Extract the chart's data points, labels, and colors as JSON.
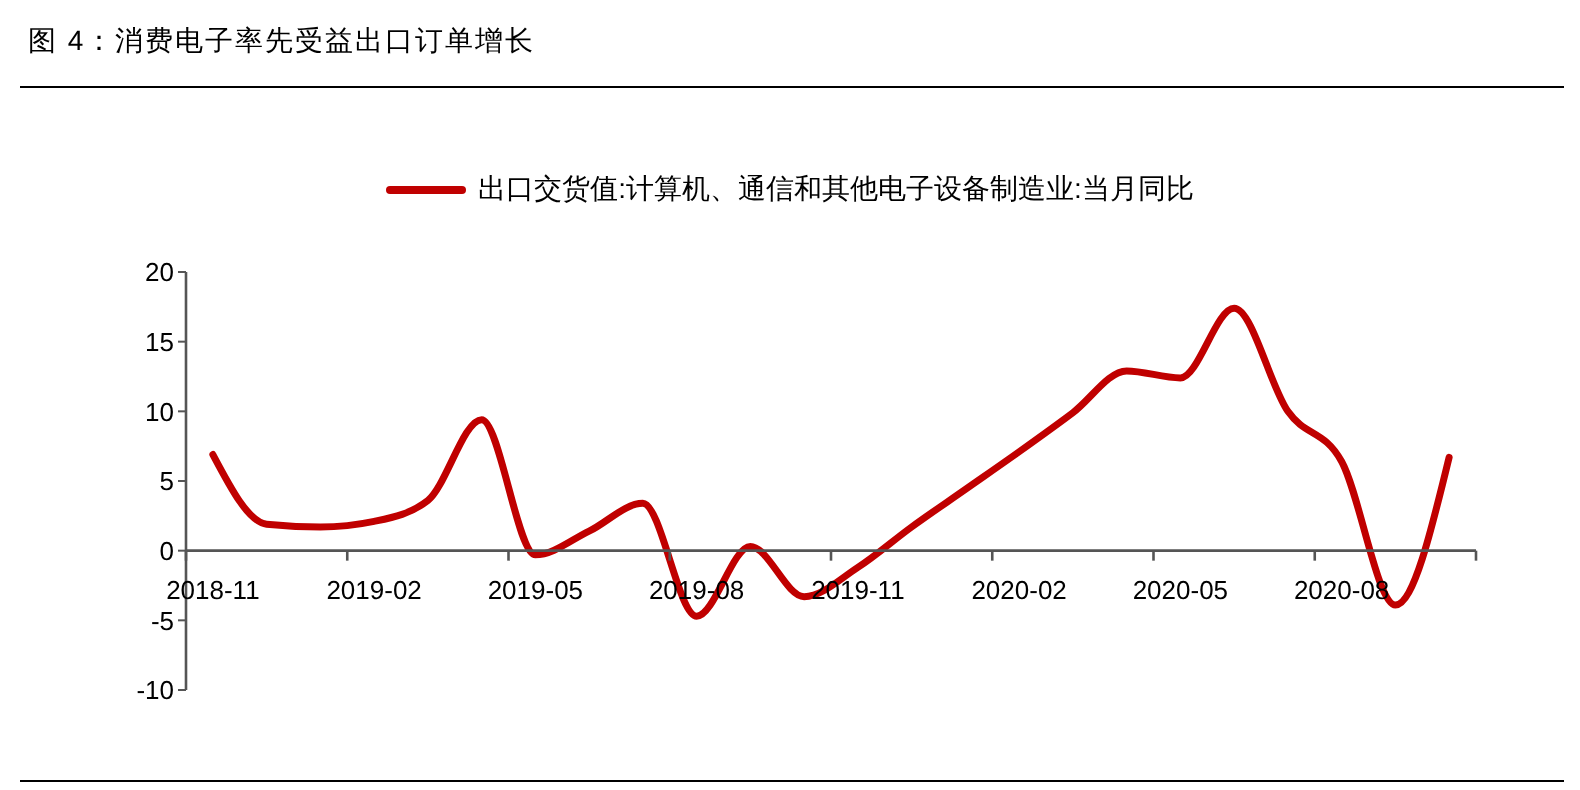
{
  "chart_data": {
    "type": "line",
    "title": "图 4：消费电子率先受益出口订单增长",
    "categories": [
      "2018-11",
      null,
      null,
      "2019-02",
      null,
      null,
      "2019-05",
      null,
      null,
      "2019-08",
      null,
      null,
      "2019-11",
      null,
      null,
      "2020-02",
      null,
      null,
      "2020-05",
      null,
      null,
      "2020-08",
      null,
      null
    ],
    "series": [
      {
        "name": "出口交货值:计算机、通信和其他电子设备制造业:当月同比",
        "color": "#c00000",
        "values": [
          6.9,
          1.9,
          1.7,
          2.1,
          3.6,
          9.4,
          -0.3,
          1.4,
          3.4,
          -4.7,
          0.3,
          -3.3,
          -1.2,
          1.7,
          4.4,
          7.1,
          9.9,
          12.9,
          12.4,
          17.4,
          10,
          6.4,
          -3.9,
          6.7
        ]
      }
    ],
    "ylim": [
      -10,
      20
    ],
    "yticks": [
      -10,
      -5,
      0,
      5,
      10,
      15,
      20
    ],
    "legend": "top"
  }
}
